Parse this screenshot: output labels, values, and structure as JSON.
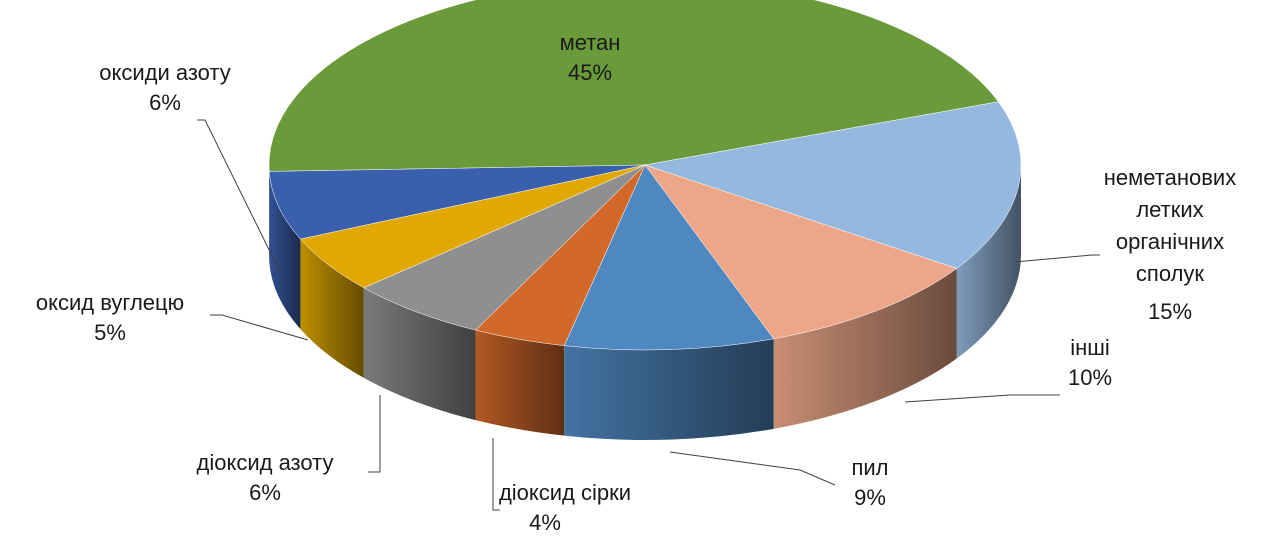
{
  "chart_data": {
    "type": "pie3d",
    "categories": [
      "метан",
      "неметанових летких органічних сполук",
      "інші",
      "пил",
      "діоксид сірки",
      "діоксид азоту",
      "оксид вуглецю",
      "оксиди азоту"
    ],
    "values": [
      45,
      15,
      10,
      9,
      4,
      6,
      5,
      6
    ],
    "value_labels": [
      "45%",
      "15%",
      "10%",
      "9%",
      "4%",
      "6%",
      "5%",
      "6%"
    ],
    "colors": [
      "#6a9a3a",
      "#95b8de",
      "#eda788",
      "#4f87c0",
      "#d2692a",
      "#8f8f8f",
      "#e0a800",
      "#3a5fad"
    ]
  }
}
